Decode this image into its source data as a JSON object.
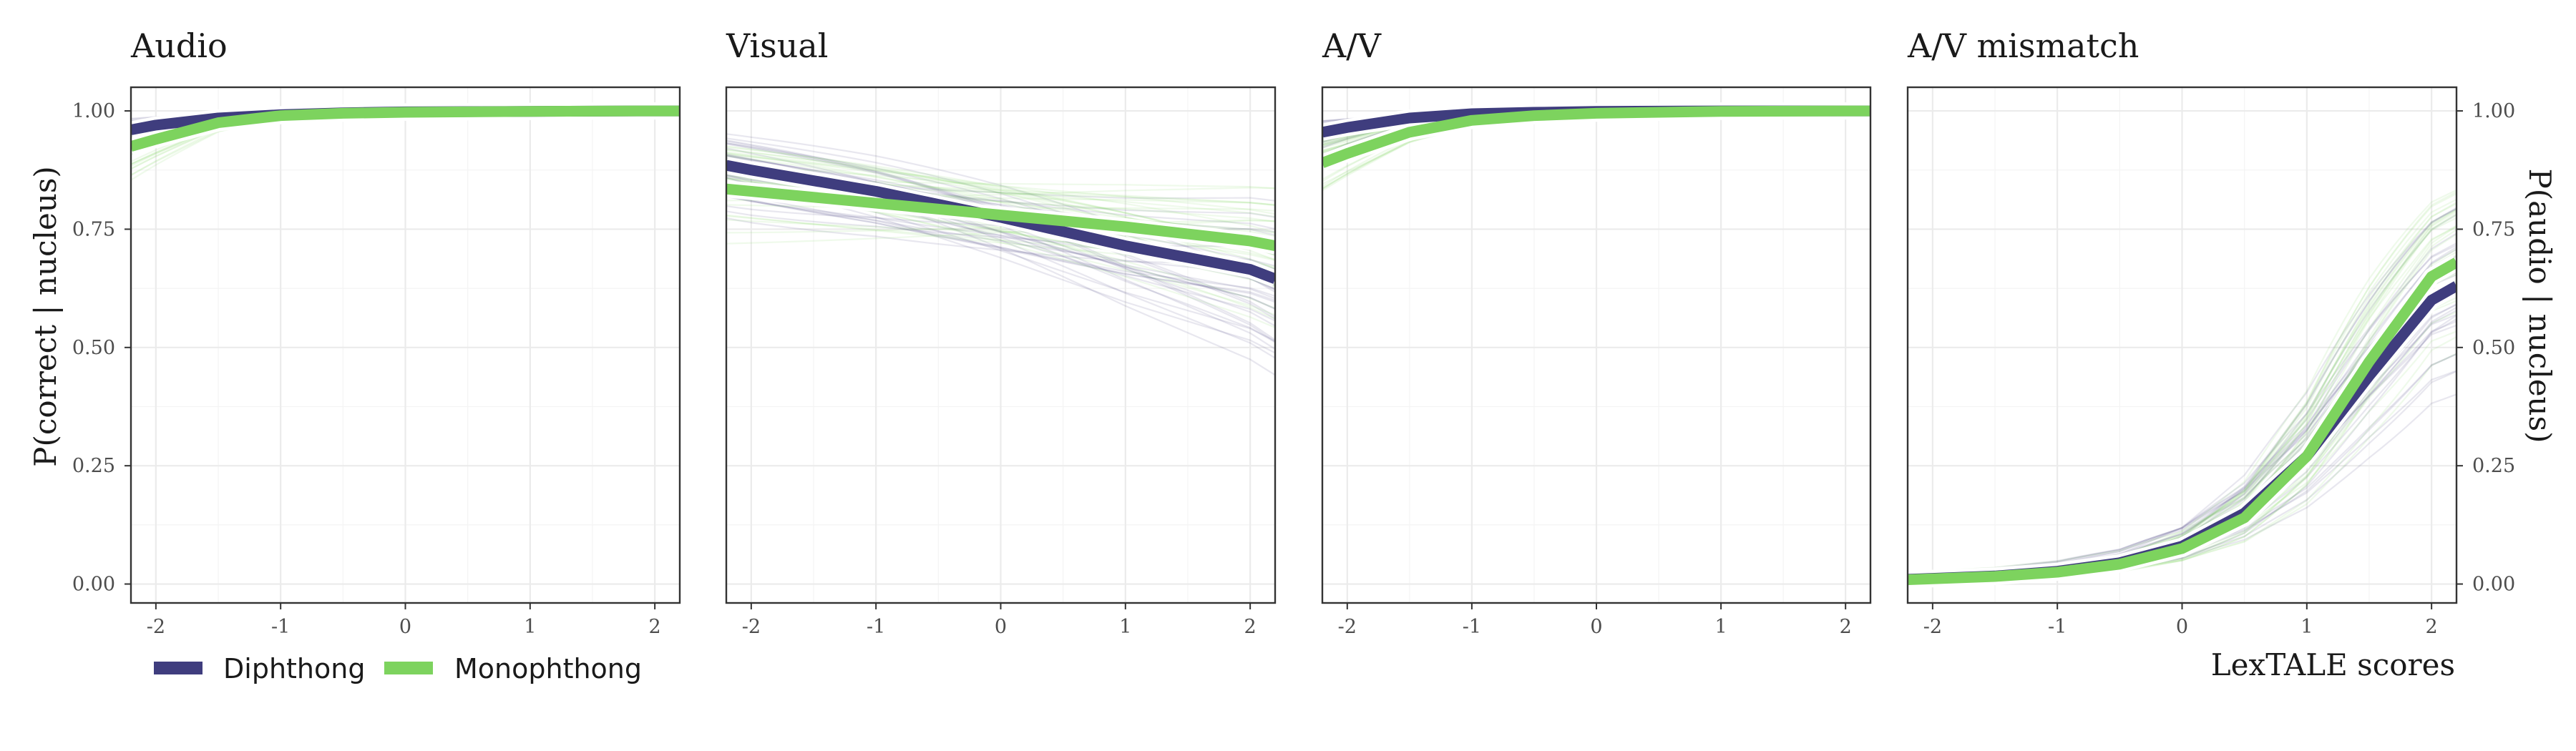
{
  "chart_data": [
    {
      "type": "line",
      "title": "Audio",
      "xlabel": "",
      "ylabel": "P(correct | nucleus)",
      "xlim": [
        -2.2,
        2.2
      ],
      "ylim": [
        -0.04,
        1.05
      ],
      "xticks": [
        -2,
        -1,
        0,
        1,
        2
      ],
      "yticks": [
        0.0,
        0.25,
        0.5,
        0.75,
        1.0
      ],
      "series": [
        {
          "name": "Diphthong",
          "color": "#3f3d7e",
          "x": [
            -2.2,
            -2,
            -1.5,
            -1,
            -0.5,
            0,
            1,
            2,
            2.2
          ],
          "y": [
            0.96,
            0.97,
            0.985,
            0.992,
            0.996,
            0.998,
            0.999,
            1.0,
            1.0
          ]
        },
        {
          "name": "Monophthong",
          "color": "#7dd35e",
          "x": [
            -2.2,
            -2,
            -1.5,
            -1,
            -0.5,
            0,
            1,
            2,
            2.2
          ],
          "y": [
            0.925,
            0.94,
            0.975,
            0.99,
            0.995,
            0.997,
            0.999,
            1.0,
            1.0
          ]
        }
      ]
    },
    {
      "type": "line",
      "title": "Visual",
      "xlabel": "",
      "ylabel": "",
      "xlim": [
        -2.2,
        2.2
      ],
      "ylim": [
        -0.04,
        1.05
      ],
      "xticks": [
        -2,
        -1,
        0,
        1,
        2
      ],
      "yticks": [
        0.0,
        0.25,
        0.5,
        0.75,
        1.0
      ],
      "series": [
        {
          "name": "Diphthong",
          "color": "#3f3d7e",
          "x": [
            -2.2,
            -2,
            -1,
            0,
            1,
            2,
            2.2
          ],
          "y": [
            0.885,
            0.875,
            0.83,
            0.775,
            0.715,
            0.665,
            0.645
          ]
        },
        {
          "name": "Monophthong",
          "color": "#7dd35e",
          "x": [
            -2.2,
            -2,
            -1,
            0,
            1,
            2,
            2.2
          ],
          "y": [
            0.835,
            0.83,
            0.805,
            0.78,
            0.755,
            0.725,
            0.715
          ]
        }
      ]
    },
    {
      "type": "line",
      "title": "A/V",
      "xlabel": "",
      "ylabel": "",
      "xlim": [
        -2.2,
        2.2
      ],
      "ylim": [
        -0.04,
        1.05
      ],
      "xticks": [
        -2,
        -1,
        0,
        1,
        2
      ],
      "yticks": [
        0.0,
        0.25,
        0.5,
        0.75,
        1.0
      ],
      "series": [
        {
          "name": "Diphthong",
          "color": "#3f3d7e",
          "x": [
            -2.2,
            -2,
            -1.5,
            -1,
            -0.5,
            0,
            1,
            2,
            2.2
          ],
          "y": [
            0.955,
            0.965,
            0.985,
            0.994,
            0.997,
            0.999,
            1.0,
            1.0,
            1.0
          ]
        },
        {
          "name": "Monophthong",
          "color": "#7dd35e",
          "x": [
            -2.2,
            -2,
            -1.5,
            -1,
            -0.5,
            0,
            1,
            2,
            2.2
          ],
          "y": [
            0.89,
            0.91,
            0.955,
            0.98,
            0.99,
            0.995,
            0.999,
            1.0,
            1.0
          ]
        }
      ]
    },
    {
      "type": "line",
      "title": "A/V mismatch",
      "xlabel": "LexTALE scores",
      "ylabel": "P(audio | nucleus)",
      "ylabel_position": "right",
      "xlim": [
        -2.2,
        2.2
      ],
      "ylim": [
        -0.04,
        1.05
      ],
      "xticks": [
        -2,
        -1,
        0,
        1,
        2
      ],
      "yticks": [
        0.0,
        0.25,
        0.5,
        0.75,
        1.0
      ],
      "series": [
        {
          "name": "Diphthong",
          "color": "#3f3d7e",
          "x": [
            -2.2,
            -2,
            -1.5,
            -1,
            -0.5,
            0,
            0.5,
            1,
            1.5,
            2,
            2.2
          ],
          "y": [
            0.01,
            0.012,
            0.017,
            0.027,
            0.045,
            0.08,
            0.15,
            0.27,
            0.44,
            0.6,
            0.63
          ]
        },
        {
          "name": "Monophthong",
          "color": "#7dd35e",
          "x": [
            -2.2,
            -2,
            -1.5,
            -1,
            -0.5,
            0,
            0.5,
            1,
            1.5,
            2,
            2.2
          ],
          "y": [
            0.009,
            0.011,
            0.016,
            0.025,
            0.042,
            0.075,
            0.14,
            0.27,
            0.47,
            0.65,
            0.68
          ]
        }
      ]
    }
  ],
  "legend": {
    "position": "bottom-left",
    "items": [
      {
        "label": "Diphthong",
        "color": "#3f3d7e"
      },
      {
        "label": "Monophthong",
        "color": "#7dd35e"
      }
    ]
  }
}
